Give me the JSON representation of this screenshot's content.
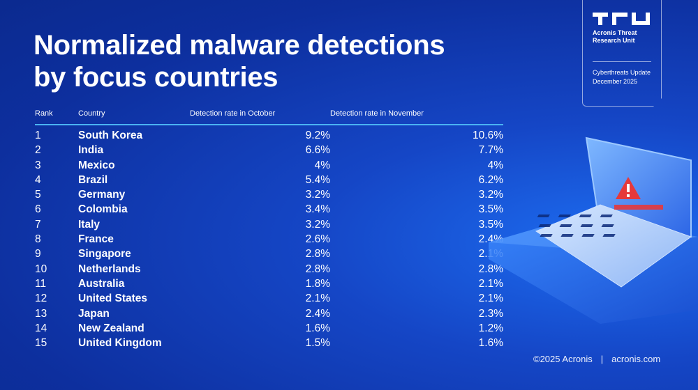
{
  "title": "Normalized malware detections by focus countries",
  "badge": {
    "org": "Acronis Threat Research Unit",
    "update": "Cyberthreats Update December 2025"
  },
  "table": {
    "columns": [
      "Rank",
      "Country",
      "Detection rate in October",
      "Detection rate in November"
    ],
    "rows": [
      {
        "rank": "1",
        "country": "South Korea",
        "october": "9.2%",
        "november": "10.6%"
      },
      {
        "rank": "2",
        "country": "India",
        "october": "6.6%",
        "november": "7.7%"
      },
      {
        "rank": "3",
        "country": "Mexico",
        "october": "4%",
        "november": "4%"
      },
      {
        "rank": "4",
        "country": "Brazil",
        "october": "5.4%",
        "november": "6.2%"
      },
      {
        "rank": "5",
        "country": "Germany",
        "october": "3.2%",
        "november": "3.2%"
      },
      {
        "rank": "6",
        "country": "Colombia",
        "october": "3.4%",
        "november": "3.5%"
      },
      {
        "rank": "7",
        "country": "Italy",
        "october": "3.2%",
        "november": "3.5%"
      },
      {
        "rank": "8",
        "country": "France",
        "october": "2.6%",
        "november": "2.4%"
      },
      {
        "rank": "9",
        "country": "Singapore",
        "october": "2.8%",
        "november": "2.1%"
      },
      {
        "rank": "10",
        "country": "Netherlands",
        "october": "2.8%",
        "november": "2.8%"
      },
      {
        "rank": "11",
        "country": "Australia",
        "october": "1.8%",
        "november": "2.1%"
      },
      {
        "rank": "12",
        "country": "United States",
        "october": "2.1%",
        "november": "2.1%"
      },
      {
        "rank": "13",
        "country": "Japan",
        "october": "2.4%",
        "november": "2.3%"
      },
      {
        "rank": "14",
        "country": "New Zealand",
        "october": "1.6%",
        "november": "1.2%"
      },
      {
        "rank": "15",
        "country": "United Kingdom",
        "october": "1.5%",
        "november": "1.6%"
      }
    ]
  },
  "footer": {
    "copyright": "©2025 Acronis",
    "separator": "|",
    "website": "acronis.com"
  },
  "icons": {
    "logo": "tru-logo-icon",
    "illustration": "laptop-warning-icon"
  },
  "colors": {
    "background": "#1546c6",
    "accent_rule": "#4ab3f2",
    "warning": "#e5393b"
  }
}
